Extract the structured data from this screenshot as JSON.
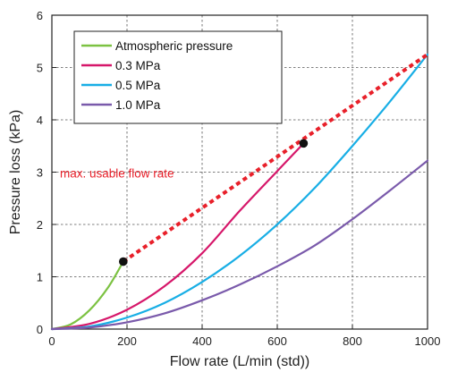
{
  "chart_data": {
    "type": "line",
    "xlabel": "Flow rate (L/min (std))",
    "ylabel": "Pressure loss (kPa)",
    "xlim": [
      0,
      1000
    ],
    "ylim": [
      0,
      6
    ],
    "x_ticks": [
      0,
      200,
      400,
      600,
      800,
      1000
    ],
    "y_ticks": [
      0,
      1,
      2,
      3,
      4,
      5,
      6
    ],
    "grid": "dashed",
    "legend_position": "top-left",
    "series": [
      {
        "name": "Atmospheric pressure",
        "color": "#7cc242",
        "x": [
          0,
          50,
          100,
          150,
          190
        ],
        "y": [
          0,
          0.09,
          0.36,
          0.8,
          1.29
        ]
      },
      {
        "name": "0.3 MPa",
        "color": "#d6176a",
        "x": [
          0,
          100,
          200,
          300,
          400,
          500,
          600,
          670
        ],
        "y": [
          0,
          0.1,
          0.37,
          0.82,
          1.45,
          2.26,
          3.02,
          3.55
        ]
      },
      {
        "name": "0.5 MPa",
        "color": "#18aee5",
        "x": [
          0,
          100,
          200,
          300,
          400,
          500,
          600,
          700,
          800,
          900,
          1000
        ],
        "y": [
          0,
          0.05,
          0.22,
          0.5,
          0.9,
          1.4,
          2.0,
          2.7,
          3.5,
          4.35,
          5.25
        ]
      },
      {
        "name": "1.0 MPa",
        "color": "#7a5aab",
        "x": [
          0,
          100,
          200,
          300,
          400,
          500,
          600,
          700,
          800,
          900,
          1000
        ],
        "y": [
          0,
          0.03,
          0.13,
          0.3,
          0.55,
          0.85,
          1.2,
          1.6,
          2.1,
          2.65,
          3.22
        ]
      }
    ],
    "max_usable_line": {
      "label": "max. usable flow rate",
      "color": "#e8202a",
      "x": [
        190,
        1000
      ],
      "y": [
        1.29,
        5.25
      ]
    },
    "markers": [
      {
        "x": 190,
        "y": 1.29
      },
      {
        "x": 670,
        "y": 3.55
      }
    ]
  }
}
